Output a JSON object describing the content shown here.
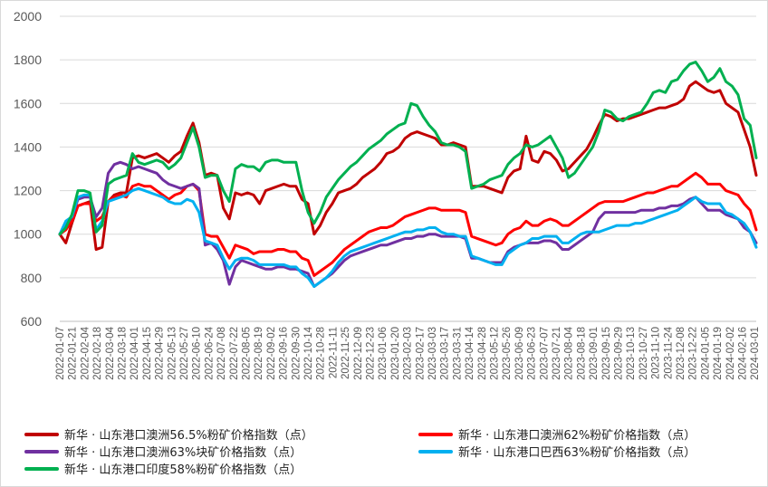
{
  "chart_data": {
    "type": "line",
    "title": "",
    "xlabel": "",
    "ylabel": "",
    "ylim": [
      600,
      2000
    ],
    "yticks": [
      600,
      800,
      1000,
      1200,
      1400,
      1600,
      1800,
      2000
    ],
    "grid": "horizontal",
    "legend_position": "bottom",
    "x_tick_labels": [
      "2022-01-07",
      "2022-01-21",
      "2022-02-04",
      "2022-02-18",
      "2022-03-04",
      "2022-03-18",
      "2022-04-01",
      "2022-04-15",
      "2022-04-29",
      "2022-05-13",
      "2022-05-27",
      "2022-06-10",
      "2022-06-24",
      "2022-07-08",
      "2022-07-22",
      "2022-08-05",
      "2022-08-19",
      "2022-09-02",
      "2022-09-16",
      "2022-09-30",
      "2022-10-14",
      "2022-10-28",
      "2022-11-11",
      "2022-11-25",
      "2022-12-09",
      "2022-12-23",
      "2023-01-06",
      "2023-01-20",
      "2023-02-03",
      "2023-02-17",
      "2023-03-03",
      "2023-03-17",
      "2023-03-31",
      "2023-04-14",
      "2023-04-28",
      "2023-05-12",
      "2023-05-26",
      "2023-06-09",
      "2023-06-23",
      "2023-07-07",
      "2023-07-21",
      "2023-08-04",
      "2023-08-18",
      "2023-09-01",
      "2023-09-15",
      "2023-09-29",
      "2023-10-13",
      "2023-10-27",
      "2023-11-10",
      "2023-11-24",
      "2023-12-08",
      "2023-12-22",
      "2024-01-05",
      "2024-01-19",
      "2024-02-02",
      "2024-02-16",
      "2024-03-01"
    ],
    "series": [
      {
        "name": "新华 · 山东港口澳洲56.5%粉矿价格指数（点）",
        "color": "#C00000",
        "values": [
          1000,
          960,
          1050,
          1130,
          1140,
          1150,
          930,
          940,
          1150,
          1180,
          1190,
          1190,
          1350,
          1360,
          1350,
          1360,
          1370,
          1350,
          1330,
          1360,
          1380,
          1450,
          1510,
          1420,
          1270,
          1280,
          1270,
          1120,
          1070,
          1190,
          1180,
          1190,
          1180,
          1140,
          1200,
          1210,
          1220,
          1230,
          1220,
          1220,
          1160,
          1140,
          1000,
          1040,
          1100,
          1140,
          1190,
          1200,
          1210,
          1230,
          1260,
          1280,
          1300,
          1330,
          1370,
          1380,
          1400,
          1440,
          1460,
          1470,
          1460,
          1450,
          1440,
          1410,
          1410,
          1420,
          1410,
          1400,
          1220,
          1220,
          1220,
          1210,
          1200,
          1190,
          1260,
          1290,
          1300,
          1450,
          1340,
          1330,
          1380,
          1370,
          1340,
          1290,
          1300,
          1330,
          1360,
          1390,
          1440,
          1500,
          1550,
          1540,
          1520,
          1530,
          1530,
          1540,
          1550,
          1560,
          1570,
          1580,
          1580,
          1590,
          1600,
          1620,
          1680,
          1700,
          1680,
          1660,
          1650,
          1660,
          1600,
          1580,
          1560,
          1480,
          1400,
          1270
        ]
      },
      {
        "name": "新华 · 山东港口澳洲62%粉矿价格指数（点）",
        "color": "#FF0000",
        "values": [
          1000,
          1020,
          1060,
          1130,
          1140,
          1140,
          1060,
          1080,
          1150,
          1170,
          1180,
          1170,
          1220,
          1230,
          1220,
          1220,
          1200,
          1180,
          1160,
          1180,
          1190,
          1220,
          1230,
          1200,
          1000,
          990,
          990,
          940,
          890,
          950,
          940,
          930,
          910,
          920,
          920,
          920,
          930,
          930,
          920,
          920,
          890,
          880,
          810,
          830,
          850,
          870,
          900,
          930,
          950,
          970,
          990,
          1010,
          1020,
          1030,
          1030,
          1040,
          1060,
          1080,
          1090,
          1100,
          1110,
          1120,
          1120,
          1110,
          1110,
          1110,
          1110,
          1100,
          990,
          980,
          970,
          960,
          950,
          960,
          1000,
          1020,
          1030,
          1060,
          1040,
          1040,
          1060,
          1070,
          1060,
          1040,
          1040,
          1060,
          1080,
          1100,
          1120,
          1140,
          1150,
          1150,
          1150,
          1150,
          1160,
          1170,
          1180,
          1190,
          1190,
          1200,
          1210,
          1220,
          1220,
          1240,
          1260,
          1280,
          1260,
          1230,
          1230,
          1230,
          1200,
          1190,
          1180,
          1140,
          1110,
          1020
        ]
      },
      {
        "name": "新华 · 山东港口澳洲63%块矿价格指数（点）",
        "color": "#7030A0",
        "values": [
          1000,
          1040,
          1080,
          1160,
          1170,
          1170,
          1080,
          1120,
          1280,
          1320,
          1330,
          1320,
          1300,
          1310,
          1300,
          1290,
          1280,
          1250,
          1230,
          1220,
          1210,
          1220,
          1230,
          1210,
          950,
          960,
          930,
          880,
          770,
          850,
          880,
          870,
          860,
          850,
          840,
          840,
          850,
          850,
          840,
          840,
          830,
          820,
          760,
          780,
          800,
          820,
          850,
          880,
          900,
          910,
          920,
          930,
          940,
          950,
          950,
          960,
          970,
          980,
          980,
          990,
          990,
          1000,
          1000,
          990,
          990,
          990,
          990,
          980,
          890,
          890,
          880,
          870,
          870,
          870,
          920,
          940,
          950,
          960,
          960,
          960,
          970,
          970,
          960,
          930,
          930,
          950,
          970,
          990,
          1010,
          1070,
          1100,
          1100,
          1100,
          1100,
          1100,
          1100,
          1110,
          1110,
          1110,
          1120,
          1120,
          1130,
          1130,
          1140,
          1160,
          1170,
          1140,
          1110,
          1110,
          1110,
          1090,
          1080,
          1070,
          1030,
          1010,
          960
        ]
      },
      {
        "name": "新华 · 山东港口巴西63%粉矿价格指数（点）",
        "color": "#00B0F0",
        "values": [
          1000,
          1060,
          1080,
          1170,
          1180,
          1180,
          1020,
          1060,
          1150,
          1160,
          1170,
          1180,
          1200,
          1210,
          1200,
          1190,
          1180,
          1170,
          1150,
          1140,
          1140,
          1160,
          1150,
          1100,
          970,
          960,
          950,
          890,
          840,
          880,
          890,
          890,
          880,
          860,
          860,
          860,
          860,
          860,
          850,
          850,
          820,
          800,
          760,
          780,
          800,
          830,
          870,
          900,
          920,
          930,
          940,
          950,
          960,
          970,
          980,
          990,
          1000,
          1010,
          1010,
          1020,
          1020,
          1030,
          1030,
          1010,
          1000,
          1000,
          990,
          990,
          900,
          890,
          880,
          870,
          860,
          860,
          910,
          930,
          950,
          960,
          980,
          980,
          990,
          990,
          990,
          960,
          960,
          980,
          1000,
          1010,
          1010,
          1010,
          1020,
          1030,
          1040,
          1040,
          1040,
          1050,
          1050,
          1060,
          1070,
          1080,
          1090,
          1100,
          1110,
          1130,
          1150,
          1170,
          1150,
          1140,
          1140,
          1140,
          1100,
          1090,
          1070,
          1050,
          1010,
          940
        ]
      },
      {
        "name": "新华 · 山东港口印度58%粉矿价格指数（点）",
        "color": "#00B050",
        "values": [
          1000,
          1030,
          1090,
          1200,
          1200,
          1190,
          1010,
          1040,
          1230,
          1250,
          1260,
          1270,
          1370,
          1330,
          1320,
          1330,
          1340,
          1330,
          1300,
          1320,
          1350,
          1420,
          1490,
          1400,
          1260,
          1270,
          1270,
          1200,
          1150,
          1300,
          1320,
          1310,
          1310,
          1290,
          1330,
          1340,
          1340,
          1330,
          1330,
          1330,
          1200,
          1100,
          1050,
          1100,
          1170,
          1210,
          1250,
          1280,
          1310,
          1330,
          1360,
          1390,
          1410,
          1430,
          1460,
          1480,
          1500,
          1510,
          1600,
          1590,
          1540,
          1500,
          1470,
          1420,
          1410,
          1410,
          1400,
          1380,
          1210,
          1220,
          1230,
          1250,
          1260,
          1270,
          1320,
          1350,
          1370,
          1410,
          1400,
          1410,
          1430,
          1450,
          1400,
          1350,
          1260,
          1280,
          1320,
          1360,
          1400,
          1470,
          1570,
          1560,
          1530,
          1520,
          1540,
          1550,
          1560,
          1600,
          1650,
          1660,
          1650,
          1700,
          1710,
          1750,
          1780,
          1790,
          1750,
          1700,
          1720,
          1760,
          1700,
          1680,
          1640,
          1530,
          1500,
          1350
        ]
      }
    ]
  }
}
